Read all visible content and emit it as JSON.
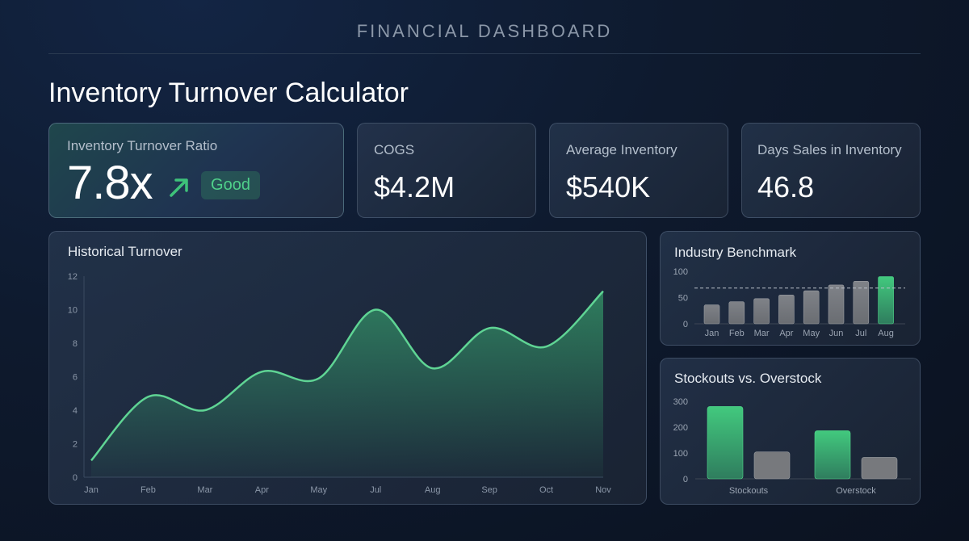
{
  "header": {
    "section_title": "FINANCIAL DASHBOARD",
    "page_title": "Inventory Turnover Calculator"
  },
  "kpis": {
    "turnover_ratio": {
      "label": "Inventory Turnover Ratio",
      "value": "7.8x",
      "trend_icon": "arrow-up-right-icon",
      "badge": "Good"
    },
    "cogs": {
      "label": "COGS",
      "value": "$4.2M"
    },
    "average_inventory": {
      "label": "Average Inventory",
      "value": "$540K"
    },
    "days_sales": {
      "label": "Days Sales in Inventory",
      "value": "46.8"
    }
  },
  "colors": {
    "accent_green": "#3ec27a",
    "bar_gray": "#7a7d82",
    "background": "#0e1a2e"
  },
  "charts": {
    "historical": {
      "title": "Historical Turnover"
    },
    "benchmark": {
      "title": "Industry Benchmark"
    },
    "stockouts": {
      "title": "Stockouts vs. Overstock"
    }
  },
  "chart_data": [
    {
      "type": "area",
      "title": "Historical Turnover",
      "categories": [
        "Jan",
        "Feb",
        "Mar",
        "Apr",
        "May",
        "Jul",
        "Aug",
        "Sep",
        "Oct",
        "Nov"
      ],
      "values": [
        1.0,
        4.8,
        4.0,
        6.3,
        5.9,
        10.0,
        6.5,
        8.9,
        7.8,
        11.1
      ],
      "yticks": [
        0,
        2,
        4,
        6,
        8,
        10,
        12
      ],
      "ylim": [
        0,
        12
      ],
      "xlabel": "",
      "ylabel": "",
      "grid": false,
      "color": "#3ec27a"
    },
    {
      "type": "bar",
      "title": "Industry Benchmark",
      "categories": [
        "Jan",
        "Feb",
        "Mar",
        "Apr",
        "May",
        "Jun",
        "Jul",
        "Aug"
      ],
      "values": [
        36,
        42,
        48,
        55,
        63,
        74,
        81,
        90
      ],
      "highlight": "Aug",
      "benchmark_line": 68,
      "yticks": [
        0,
        50,
        100
      ],
      "ylim": [
        0,
        100
      ],
      "grid": false
    },
    {
      "type": "bar",
      "title": "Stockouts vs. Overstock",
      "categories": [
        "Stockouts",
        "Overstock"
      ],
      "series": [
        {
          "name": "green",
          "values": [
            280,
            186
          ]
        },
        {
          "name": "gray",
          "values": [
            104,
            83
          ]
        }
      ],
      "yticks": [
        0,
        100,
        200,
        300
      ],
      "ylim": [
        0,
        300
      ],
      "grid": false
    }
  ]
}
